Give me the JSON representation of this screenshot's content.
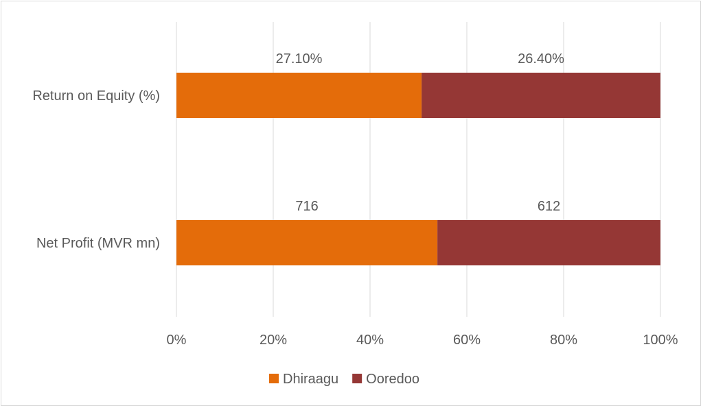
{
  "chart_data": {
    "type": "bar",
    "orientation": "horizontal",
    "stacked": "percent",
    "categories": [
      "Return on Equity (%)",
      "Net Profit (MVR mn)"
    ],
    "series": [
      {
        "name": "Dhiraagu",
        "values": [
          27.1,
          716
        ],
        "labels": [
          "27.10%",
          "716"
        ],
        "color": "#e46c0a"
      },
      {
        "name": "Ooredoo",
        "values": [
          26.4,
          612
        ],
        "labels": [
          "26.40%",
          "612"
        ],
        "color": "#953735"
      }
    ],
    "xaxis": {
      "ticks": [
        0,
        20,
        40,
        60,
        80,
        100
      ],
      "tick_labels": [
        "0%",
        "20%",
        "40%",
        "60%",
        "80%",
        "100%"
      ],
      "range": [
        0,
        100
      ]
    },
    "grid": true,
    "legend": "bottom",
    "colors": {
      "grid": "#d9d9d9",
      "text": "#595959"
    }
  }
}
